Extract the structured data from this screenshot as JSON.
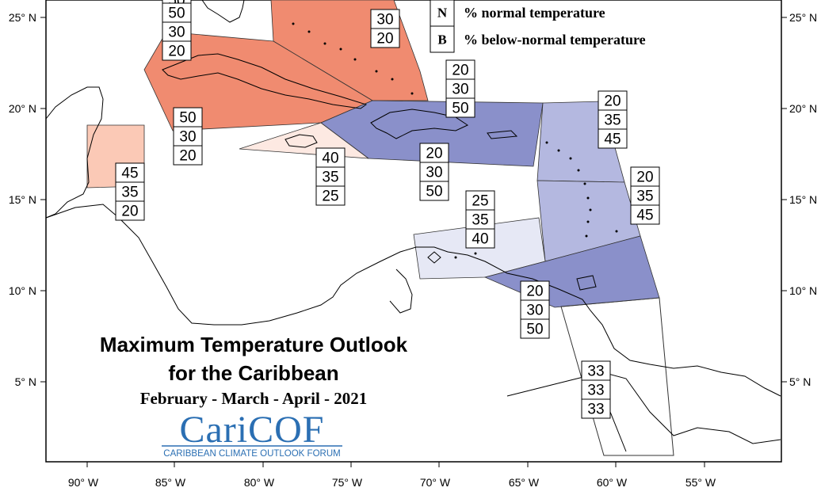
{
  "map": {
    "title_line1": "Maximum Temperature Outlook",
    "title_line2": "for the Caribbean",
    "subtitle": "February - March - April - 2021",
    "logo": {
      "main": "CariCOF",
      "sub": "CARIBBEAN CLIMATE OUTLOOK FORUM"
    },
    "legend": [
      {
        "key": "N",
        "text": "% normal temperature"
      },
      {
        "key": "B",
        "text": "% below-normal temperature"
      }
    ],
    "lon_ticks": [
      "90° W",
      "85° W",
      "80° W",
      "75° W",
      "70° W",
      "65° W",
      "60° W",
      "55° W"
    ],
    "lat_ticks": [
      "25° N",
      "20° N",
      "15° N",
      "10° N",
      "5° N"
    ],
    "colors": {
      "above_strong": "#f08b70",
      "above_light": "#fbc9b6",
      "above_faint": "#fde9e2",
      "below_strong": "#8a90ca",
      "below_medium": "#b4b8e0",
      "below_faint": "#e6e8f5",
      "logo_blue": "#2b6fb3"
    },
    "regions": [
      {
        "name": "cuba-west",
        "values": [
          "50",
          "30",
          "20"
        ]
      },
      {
        "name": "bahamas",
        "values": [
          "30",
          "20"
        ]
      },
      {
        "name": "cuba-north",
        "values": [
          "50",
          "30",
          "20"
        ]
      },
      {
        "name": "cayman-jamaica",
        "values": [
          "50",
          "30",
          "20"
        ]
      },
      {
        "name": "belize",
        "values": [
          "45",
          "35",
          "20"
        ]
      },
      {
        "name": "jamaica-south",
        "values": [
          "40",
          "35",
          "25"
        ]
      },
      {
        "name": "turks-caicos",
        "values": [
          "20",
          "30",
          "50"
        ]
      },
      {
        "name": "hispaniola-puerto-rico",
        "values": [
          "20",
          "30",
          "50"
        ]
      },
      {
        "name": "leeward-islands",
        "values": [
          "20",
          "35",
          "45"
        ]
      },
      {
        "name": "windward-islands",
        "values": [
          "20",
          "35",
          "45"
        ]
      },
      {
        "name": "abc-islands",
        "values": [
          "25",
          "35",
          "40"
        ]
      },
      {
        "name": "trinidad-tobago",
        "values": [
          "20",
          "30",
          "50"
        ]
      },
      {
        "name": "guianas",
        "values": [
          "33",
          "33",
          "33"
        ]
      }
    ]
  }
}
